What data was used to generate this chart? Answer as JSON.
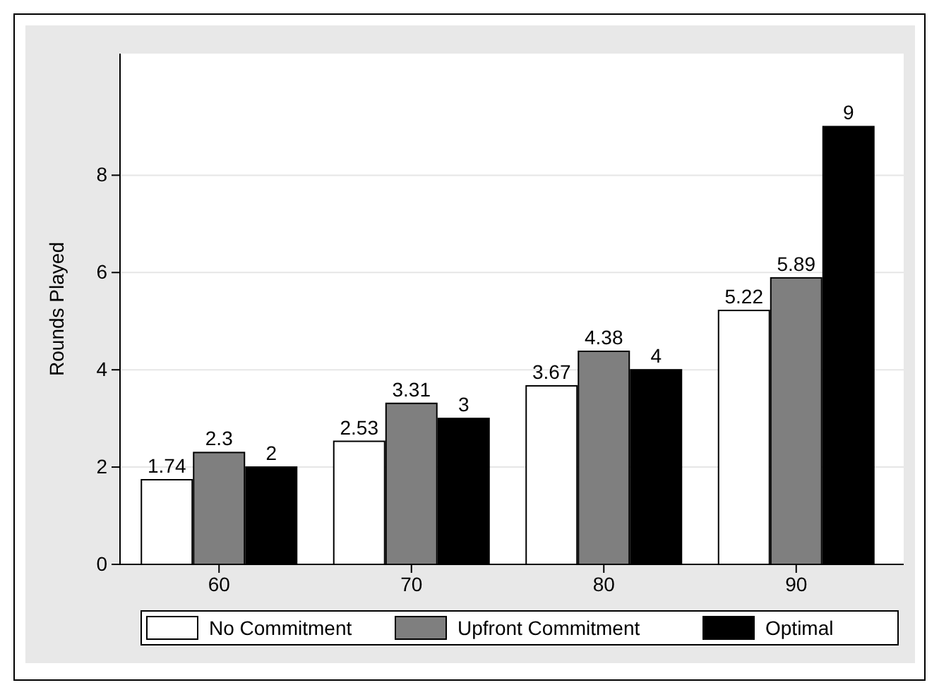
{
  "chart_data": {
    "type": "bar",
    "ylabel": "Rounds Played",
    "categories": [
      "60",
      "70",
      "80",
      "90"
    ],
    "series": [
      {
        "name": "No Commitment",
        "color": "#ffffff",
        "values": [
          1.74,
          2.53,
          3.67,
          5.22
        ]
      },
      {
        "name": "Upfront Commitment",
        "color": "#7f7f7f",
        "values": [
          2.3,
          3.31,
          4.38,
          5.89
        ]
      },
      {
        "name": "Optimal",
        "color": "#000000",
        "values": [
          2,
          3,
          4,
          9
        ]
      }
    ],
    "ylim": [
      0,
      10.5
    ],
    "yticks": [
      0,
      2,
      4,
      6,
      8
    ],
    "grid": "y",
    "legend": "bottom",
    "data_labels": true
  }
}
